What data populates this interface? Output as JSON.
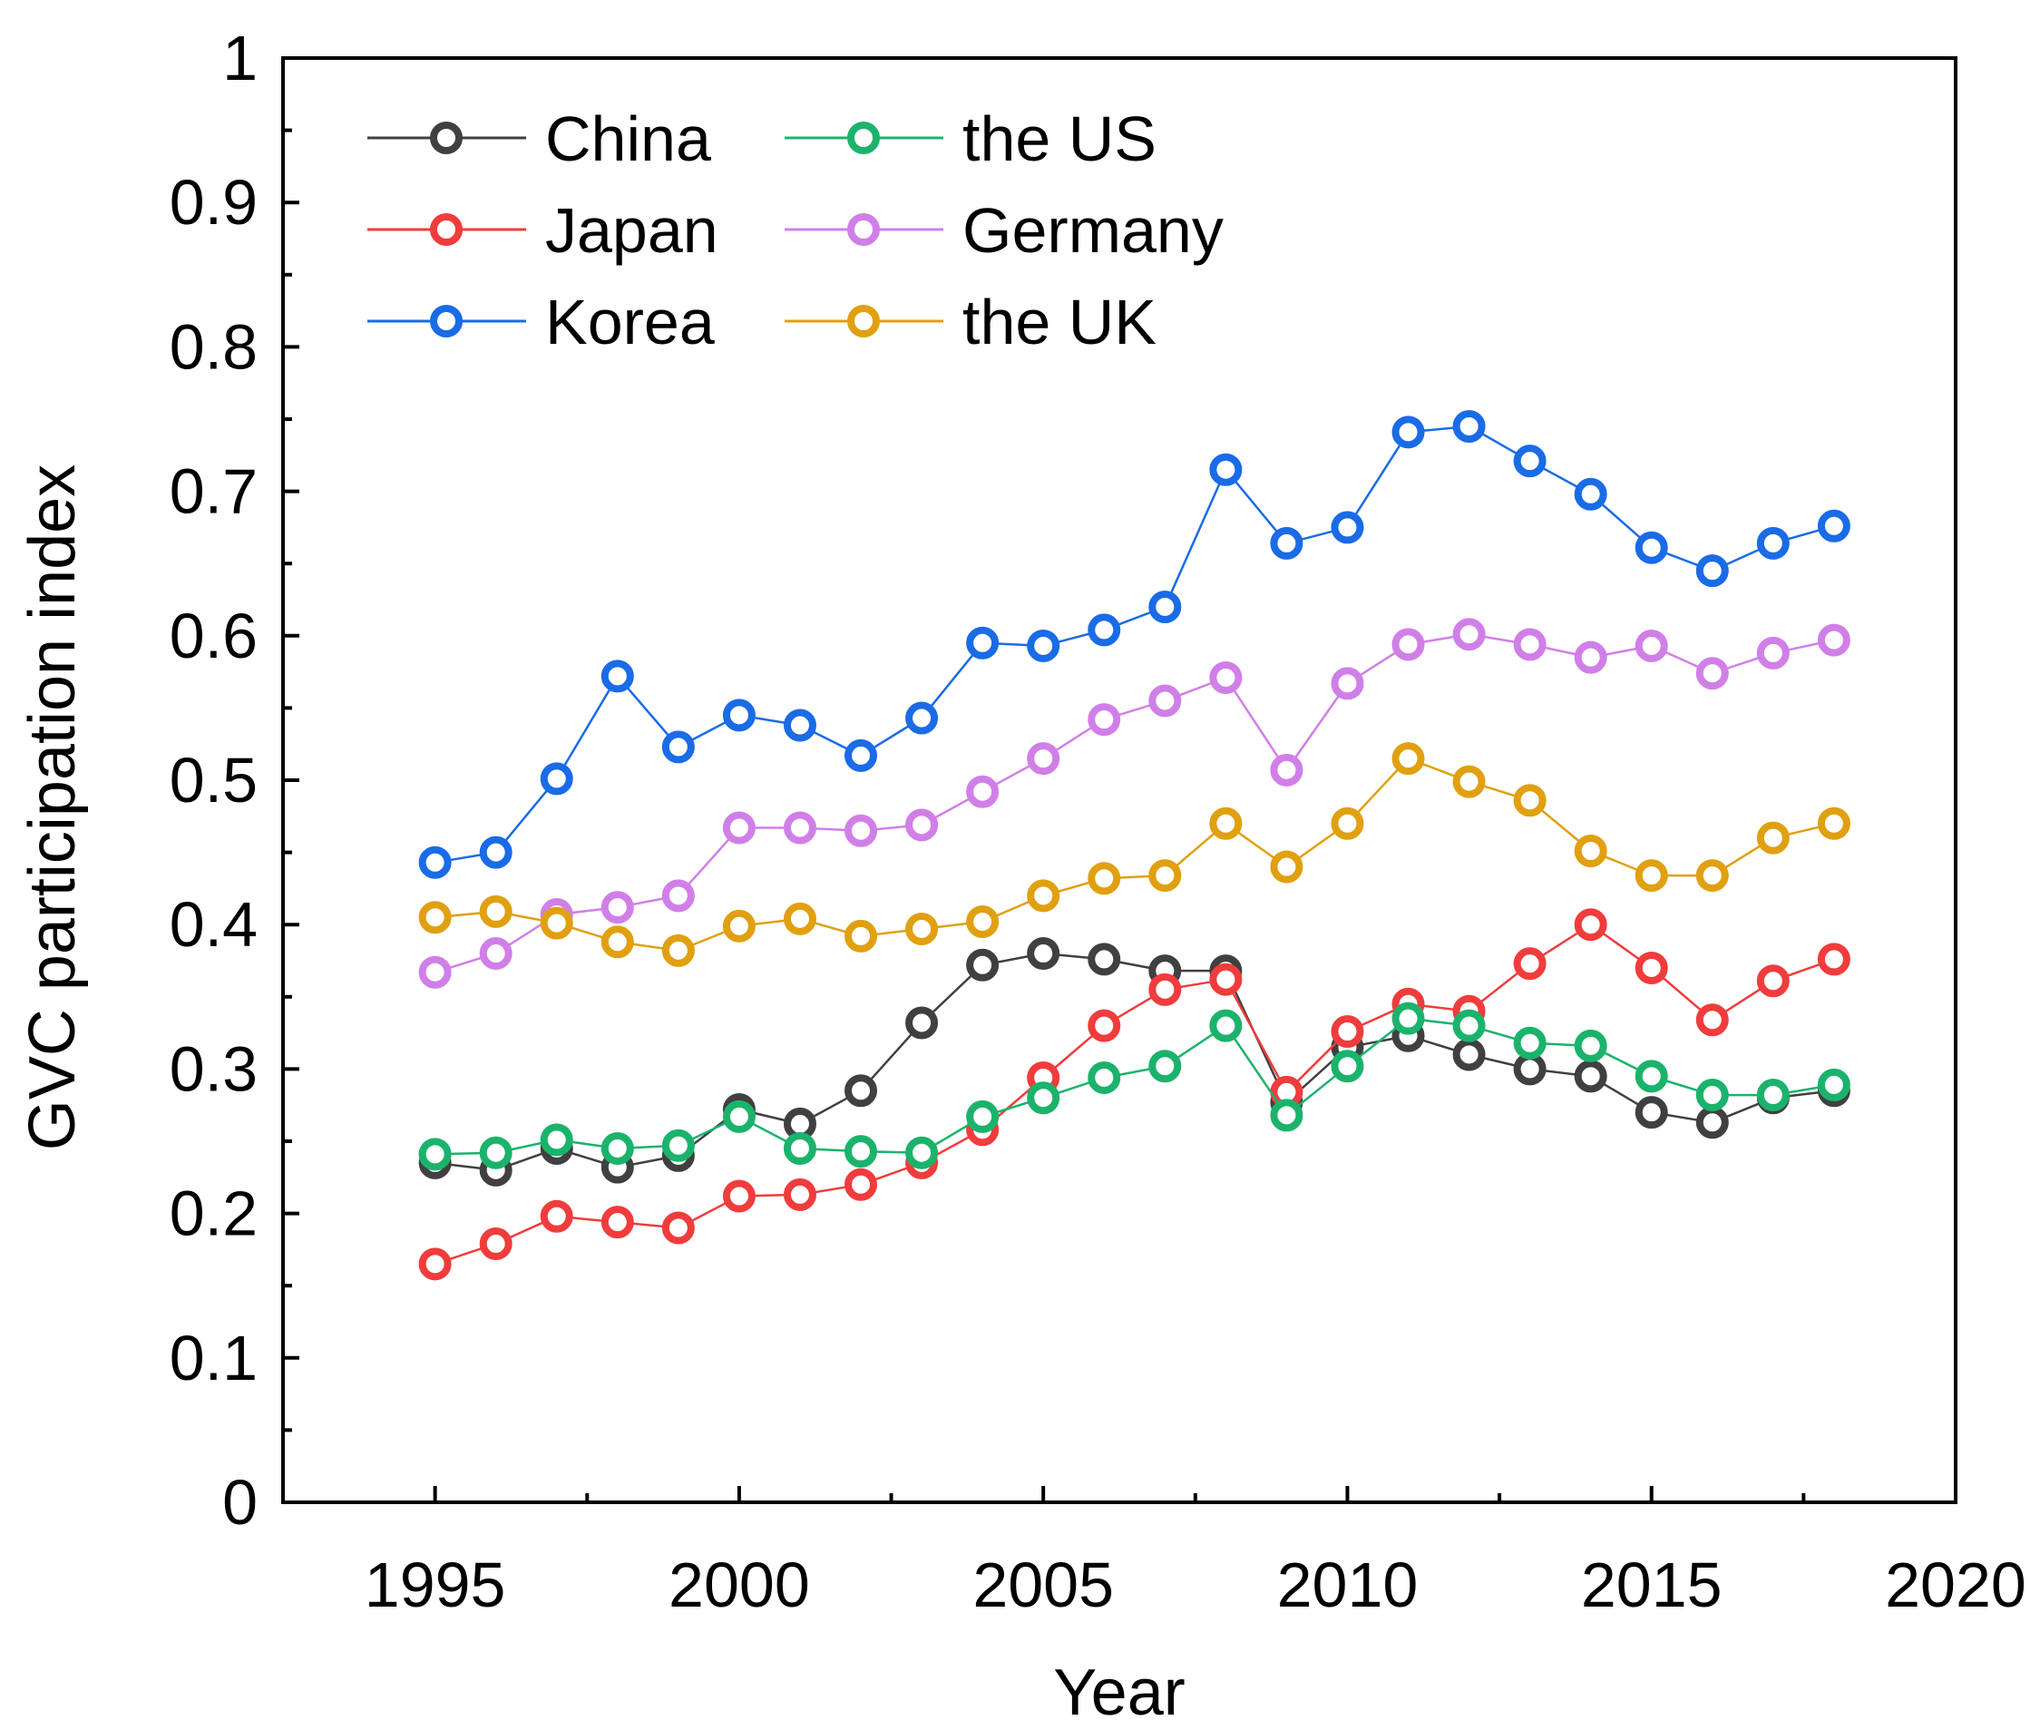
{
  "chart_data": {
    "type": "line",
    "title": "",
    "xlabel": "Year",
    "ylabel": "GVC participation index",
    "xlim": [
      1992.5,
      2020
    ],
    "ylim": [
      0,
      1
    ],
    "xticks": [
      1995,
      2000,
      2005,
      2010,
      2015,
      2020
    ],
    "yticks": [
      0,
      0.1,
      0.2,
      0.3,
      0.4,
      0.5,
      0.6,
      0.7,
      0.8,
      0.9,
      1
    ],
    "ytick_labels": [
      "0",
      "0.1",
      "0.2",
      "0.3",
      "0.4",
      "0.5",
      "0.6",
      "0.7",
      "0.8",
      "0.9",
      "1"
    ],
    "xtick_labels": [
      "1995",
      "2000",
      "2005",
      "2010",
      "2015",
      "2020"
    ],
    "grid": false,
    "legend_position": "top-left",
    "x": [
      1995,
      1996,
      1997,
      1998,
      1999,
      2000,
      2001,
      2002,
      2003,
      2004,
      2005,
      2006,
      2007,
      2008,
      2009,
      2010,
      2011,
      2012,
      2013,
      2014,
      2015,
      2016,
      2017,
      2018
    ],
    "series": [
      {
        "name": "China",
        "color": "#404040",
        "values": [
          0.235,
          0.23,
          0.245,
          0.232,
          0.24,
          0.272,
          0.262,
          0.285,
          0.332,
          0.372,
          0.38,
          0.376,
          0.368,
          0.368,
          0.277,
          0.315,
          0.323,
          0.31,
          0.3,
          0.295,
          0.27,
          0.263,
          0.28,
          0.285
        ]
      },
      {
        "name": "Japan",
        "color": "#f03c3c",
        "values": [
          0.165,
          0.179,
          0.198,
          0.194,
          0.19,
          0.212,
          0.213,
          0.22,
          0.235,
          0.258,
          0.294,
          0.33,
          0.355,
          0.362,
          0.284,
          0.326,
          0.345,
          0.34,
          0.373,
          0.4,
          0.37,
          0.334,
          0.361,
          0.376
        ]
      },
      {
        "name": "Korea",
        "color": "#1a6be6",
        "values": [
          0.443,
          0.45,
          0.501,
          0.572,
          0.523,
          0.545,
          0.538,
          0.517,
          0.543,
          0.595,
          0.593,
          0.604,
          0.62,
          0.715,
          0.664,
          0.675,
          0.741,
          0.745,
          0.721,
          0.698,
          0.661,
          0.645,
          0.664,
          0.676
        ]
      },
      {
        "name": "the US",
        "color": "#1bb36c",
        "values": [
          0.241,
          0.242,
          0.251,
          0.245,
          0.247,
          0.267,
          0.245,
          0.243,
          0.242,
          0.267,
          0.28,
          0.294,
          0.302,
          0.33,
          0.268,
          0.302,
          0.335,
          0.33,
          0.318,
          0.316,
          0.295,
          0.282,
          0.282,
          0.289
        ]
      },
      {
        "name": "Germany",
        "color": "#d17fe8",
        "values": [
          0.367,
          0.38,
          0.407,
          0.412,
          0.42,
          0.467,
          0.467,
          0.465,
          0.469,
          0.492,
          0.515,
          0.542,
          0.555,
          0.571,
          0.507,
          0.567,
          0.594,
          0.601,
          0.594,
          0.585,
          0.593,
          0.574,
          0.588,
          0.597
        ]
      },
      {
        "name": "the UK",
        "color": "#e0a010",
        "values": [
          0.405,
          0.409,
          0.401,
          0.388,
          0.382,
          0.399,
          0.404,
          0.392,
          0.397,
          0.402,
          0.42,
          0.432,
          0.434,
          0.47,
          0.44,
          0.47,
          0.515,
          0.499,
          0.486,
          0.451,
          0.434,
          0.434,
          0.46,
          0.47
        ]
      }
    ]
  }
}
